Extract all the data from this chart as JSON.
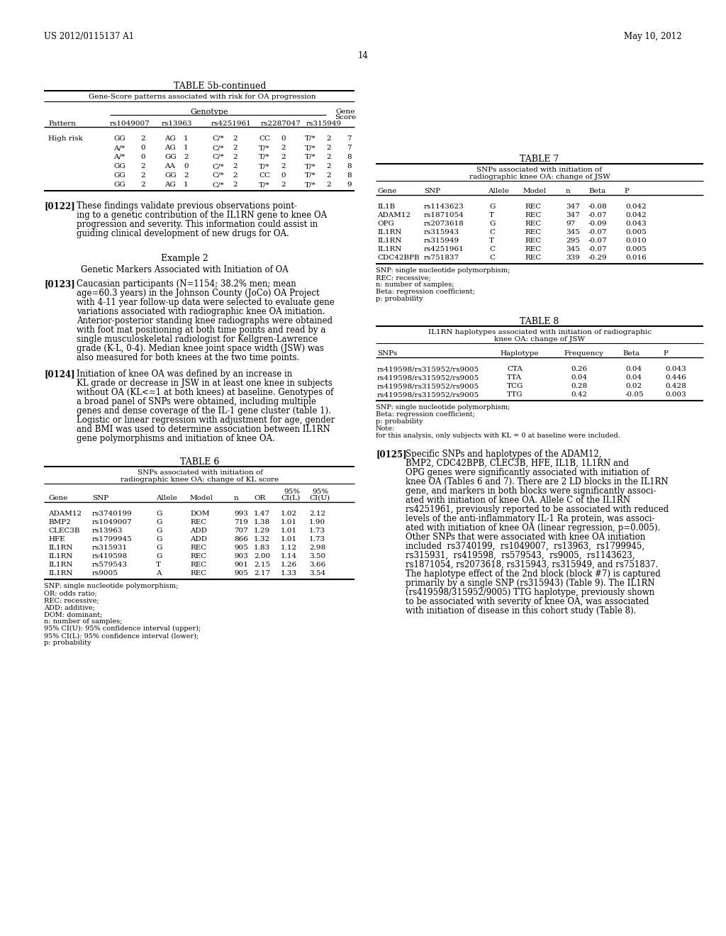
{
  "header_left": "US 2012/0115137 A1",
  "header_right": "May 10, 2012",
  "page_number": "14",
  "bg_color": "#ffffff",
  "table5b_title": "TABLE 5b-continued",
  "table5b_subtitle": "Gene-Score patterns associated with risk for OA progression",
  "table5b_genotype_header": "Genotype",
  "table5b_rows": [
    [
      "High risk",
      "GG",
      "2",
      "AG",
      "1",
      "C/*",
      "2",
      "CC",
      "0",
      "T/*",
      "2",
      "7"
    ],
    [
      "",
      "A/*",
      "0",
      "AG",
      "1",
      "C/*",
      "2",
      "T/*",
      "2",
      "T/*",
      "2",
      "7"
    ],
    [
      "",
      "A/*",
      "0",
      "GG",
      "2",
      "C/*",
      "2",
      "T/*",
      "2",
      "T/*",
      "2",
      "8"
    ],
    [
      "",
      "GG",
      "2",
      "AA",
      "0",
      "C/*",
      "2",
      "T/*",
      "2",
      "T/*",
      "2",
      "8"
    ],
    [
      "",
      "GG",
      "2",
      "GG",
      "2",
      "C/*",
      "2",
      "CC",
      "0",
      "T/*",
      "2",
      "8"
    ],
    [
      "",
      "GG",
      "2",
      "AG",
      "1",
      "C/*",
      "2",
      "T/*",
      "2",
      "T/*",
      "2",
      "9"
    ]
  ],
  "para122_tag": "[0122]",
  "para122_lines": [
    "These findings validate previous observations point-",
    "ing to a genetic contribution of the IL1RN gene to knee OA",
    "progression and severity. This information could assist in",
    "guiding clinical development of new drugs for OA."
  ],
  "example2_title": "Example 2",
  "example2_subtitle": "Genetic Markers Associated with Initiation of OA",
  "para123_tag": "[0123]",
  "para123_lines": [
    "Caucasian participants (N=1154; 38.2% men; mean",
    "age=60.3 years) in the Johnson County (JoCo) OA Project",
    "with 4-11 year follow-up data were selected to evaluate gene",
    "variations associated with radiographic knee OA initiation.",
    "Anterior-posterior standing knee radiographs were obtained",
    "with foot mat positioning at both time points and read by a",
    "single musculoskeletal radiologist for Kellgren-Lawrence",
    "grade (K-L, 0-4). Median knee joint space width (JSW) was",
    "also measured for both knees at the two time points."
  ],
  "para124_tag": "[0124]",
  "para124_lines": [
    "Initiation of knee OA was defined by an increase in",
    "KL grade or decrease in JSW in at least one knee in subjects",
    "without OA (KL<=1 at both knees) at baseline. Genotypes of",
    "a broad panel of SNPs were obtained, including multiple",
    "genes and dense coverage of the IL-1 gene cluster (table 1).",
    "Logistic or linear regression with adjustment for age, gender",
    "and BMI was used to determine association between IL1RN",
    "gene polymorphisms and initiation of knee OA."
  ],
  "table6_title": "TABLE 6",
  "table6_sub1": "SNPs associated with initiation of",
  "table6_sub2": "radiographic knee OA: change of KL score",
  "table6_rows": [
    [
      "ADAM12",
      "rs3740199",
      "G",
      "DOM",
      "993",
      "1.47",
      "1.02",
      "2.12"
    ],
    [
      "BMP2",
      "rs1049007",
      "G",
      "REC",
      "719",
      "1.38",
      "1.01",
      "1.90"
    ],
    [
      "CLEC3B",
      "rs13963",
      "G",
      "ADD",
      "707",
      "1.29",
      "1.01",
      "1.73"
    ],
    [
      "HFE",
      "rs1799945",
      "G",
      "ADD",
      "866",
      "1.32",
      "1.01",
      "1.73"
    ],
    [
      "IL1RN",
      "rs315931",
      "G",
      "REC",
      "905",
      "1.83",
      "1.12",
      "2.98"
    ],
    [
      "IL1RN",
      "rs419598",
      "G",
      "REC",
      "903",
      "2.00",
      "1.14",
      "3.50"
    ],
    [
      "IL1RN",
      "rs579543",
      "T",
      "REC",
      "901",
      "2.15",
      "1.26",
      "3.66"
    ],
    [
      "IL1RN",
      "rs9005",
      "A",
      "REC",
      "905",
      "2.17",
      "1.33",
      "3.54"
    ]
  ],
  "table6_footnotes": [
    "SNP: single nucleotide polymorphism;",
    "OR: odds ratio;",
    "REC: recessive;",
    "ADD: additive;",
    "DOM: dominant;",
    "n: number of samples;",
    "95% CI(U): 95% confidence interval (upper);",
    "95% CI(L): 95% confidence interval (lower);",
    "p: probability"
  ],
  "table7_title": "TABLE 7",
  "table7_sub1": "SNPs associated with initiation of",
  "table7_sub2": "radiographic knee OA: change of JSW",
  "table7_rows": [
    [
      "IL1B",
      "rs1143623",
      "G",
      "REC",
      "347",
      "-0.08",
      "0.042"
    ],
    [
      "ADAM12",
      "rs1871054",
      "T",
      "REC",
      "347",
      "-0.07",
      "0.042"
    ],
    [
      "OPG",
      "rs2073618",
      "G",
      "REC",
      "97",
      "-0.09",
      "0.043"
    ],
    [
      "IL1RN",
      "rs315943",
      "C",
      "REC",
      "345",
      "-0.07",
      "0.005"
    ],
    [
      "IL1RN",
      "rs315949",
      "T",
      "REC",
      "295",
      "-0.07",
      "0.010"
    ],
    [
      "IL1RN",
      "rs4251961",
      "C",
      "REC",
      "345",
      "-0.07",
      "0.005"
    ],
    [
      "CDC42BPB",
      "rs751837",
      "C",
      "REC",
      "339",
      "-0.29",
      "0.016"
    ]
  ],
  "table7_footnotes": [
    "SNP: single nucleotide polymorphism;",
    "REC: recessive;",
    "n: number of samples;",
    "Beta: regression coefficient;",
    "p: probability"
  ],
  "table8_title": "TABLE 8",
  "table8_sub1": "IL1RN haplotypes associated with initiation of radiographic",
  "table8_sub2": "knee OA: change of JSW",
  "table8_rows": [
    [
      "rs419598/rs315952/rs9005",
      "CTA",
      "0.26",
      "0.04",
      "0.043"
    ],
    [
      "rs419598/rs315952/rs9005",
      "TTA",
      "0.04",
      "0.04",
      "0.446"
    ],
    [
      "rs419598/rs315952/rs9005",
      "TCG",
      "0.28",
      "0.02",
      "0.428"
    ],
    [
      "rs419598/rs315952/rs9005",
      "TTG",
      "0.42",
      "-0.05",
      "0.003"
    ]
  ],
  "table8_footnotes": [
    "SNP: single nucleotide polymorphism;",
    "Beta: regression coefficient;",
    "p: probability",
    "Note:",
    "for this analysis, only subjects with KL = 0 at baseline were included."
  ],
  "para125_tag": "[0125]",
  "para125_lines": [
    "Specific SNPs and haplotypes of the ADAM12,",
    "BMP2, CDC42BPB, CLEC3B, HFE, IL1B, 1L1RN and",
    "OPG genes were significantly associated with initiation of",
    "knee OA (Tables 6 and 7). There are 2 LD blocks in the IL1RN",
    "gene, and markers in both blocks were significantly associ-",
    "ated with initiation of knee OA. Allele C of the IL1RN",
    "rs4251961, previously reported to be associated with reduced",
    "levels of the anti-inflammatory IL-1 Ra protein, was associ-",
    "ated with initiation of knee OA (linear regression, p=0.005).",
    "Other SNPs that were associated with knee OA initiation",
    "included  rs3740199,  rs1049007,  rs13963,  rs1799945,",
    "rs315931,  rs419598,  rs579543,  rs9005,  rs1143623,",
    "rs1871054, rs2073618, rs315943, rs315949, and rs751837.",
    "The haplotype effect of the 2nd block (block #7) is captured",
    "primarily by a single SNP (rs315943) (Table 9). The IL1RN",
    "(rs419598/315952/9005) TTG haplotype, previously shown",
    "to be associated with severity of knee OA, was associated",
    "with initiation of disease in this cohort study (Table 8)."
  ]
}
